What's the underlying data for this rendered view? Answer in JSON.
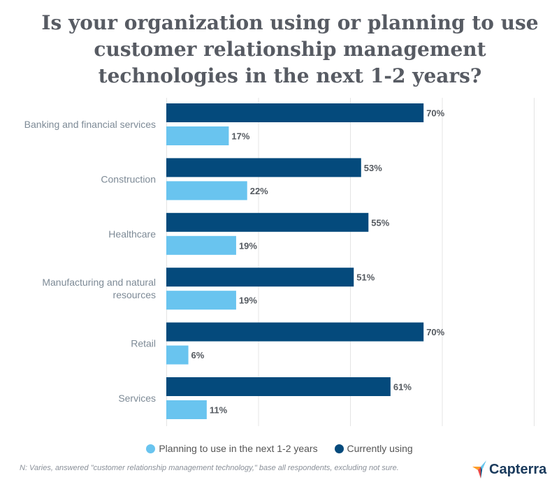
{
  "chart_data": {
    "type": "bar",
    "orientation": "horizontal",
    "title": "Is your organization using or planning to use customer relationship management technologies in the next 1-2 years?",
    "title_lines": [
      "Is your organization using or planning to use",
      "customer relationship management",
      "technologies in the next 1-2 years?"
    ],
    "categories": [
      "Banking and financial services",
      "Construction",
      "Healthcare",
      "Manufacturing and natural resources",
      "Retail",
      "Services"
    ],
    "category_lines": [
      [
        "Banking and financial services"
      ],
      [
        "Construction"
      ],
      [
        "Healthcare"
      ],
      [
        "Manufacturing and natural",
        "resources"
      ],
      [
        "Retail"
      ],
      [
        "Services"
      ]
    ],
    "series": [
      {
        "name": "Currently using",
        "color": "#044a7c",
        "values": [
          70,
          53,
          55,
          51,
          70,
          61
        ]
      },
      {
        "name": "Planning to use in the next 1-2 years",
        "color": "#69c4ef",
        "values": [
          17,
          22,
          19,
          19,
          6,
          11
        ]
      }
    ],
    "data_labels": [
      [
        "70%",
        "53%",
        "55%",
        "51%",
        "70%",
        "61%"
      ],
      [
        "17%",
        "22%",
        "19%",
        "19%",
        "6%",
        "11%"
      ]
    ],
    "xlim": [
      0,
      100
    ],
    "grid": true,
    "legend_position": "bottom",
    "legend": [
      "Planning to use in the next 1-2 years",
      "Currently using"
    ]
  },
  "footnote": "N: Varies, answered \"customer relationship management technology,\" base all respondents, excluding not sure.",
  "brand": "Capterra"
}
